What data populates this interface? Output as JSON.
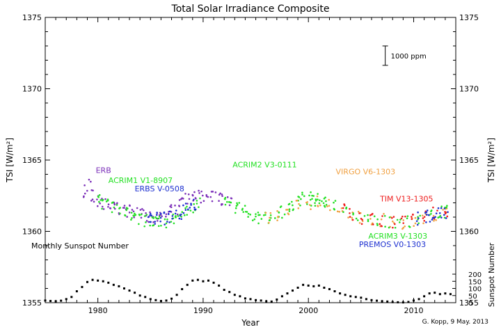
{
  "chart_data": {
    "type": "scatter",
    "title": "Total Solar Irradiance Composite",
    "xlabel": "Year",
    "ylabel_left": "TSI [W/m²]",
    "ylabel_right": "TSI [W/m²]",
    "ylabel_sunspot": "Sunspot Number",
    "xlim": [
      1975,
      2014
    ],
    "ylim": [
      1355,
      1375
    ],
    "x_ticks": [
      1980,
      1990,
      2000,
      2010
    ],
    "y_ticks": [
      1355,
      1360,
      1365,
      1370,
      1375
    ],
    "sunspot_axis": {
      "range": [
        0,
        200
      ],
      "ticks": [
        0,
        50,
        100,
        150,
        200
      ]
    },
    "scale_bar_label": "1000 ppm",
    "scale_bar_wm2": 1.361,
    "colors": {
      "erb": "#7a2db8",
      "acrim1": "#22e022",
      "erbs": "#1c2fd0",
      "acrim2": "#22e022",
      "virgo": "#f0a040",
      "tim": "#ee1c1c",
      "acrim3": "#22e022",
      "premos": "#1c2fd0",
      "sunspot": "#000000"
    },
    "series": [
      {
        "name": "ERB",
        "key": "erb",
        "x": [
          1978.9,
          1979.2,
          1979.6,
          1980.0,
          1980.5,
          1981.0,
          1981.5,
          1982.0,
          1982.5,
          1983.0,
          1983.5,
          1984.0,
          1984.5,
          1985.0,
          1985.5,
          1986.0,
          1986.5,
          1987.0,
          1987.5,
          1988.0,
          1988.5,
          1989.0,
          1989.5,
          1990.0,
          1990.5,
          1991.0,
          1991.5,
          1992.0,
          1992.5
        ],
        "y": [
          1362.8,
          1363.2,
          1362.5,
          1362.2,
          1362.0,
          1362.0,
          1361.8,
          1361.6,
          1361.5,
          1361.4,
          1361.3,
          1361.2,
          1361.1,
          1361.0,
          1360.9,
          1361.0,
          1361.2,
          1361.4,
          1361.6,
          1361.9,
          1362.2,
          1362.4,
          1362.6,
          1362.4,
          1362.3,
          1362.5,
          1362.3,
          1362.2,
          1362.0
        ],
        "label_year": 1979.8,
        "label_tsi": 1364.1
      },
      {
        "name": "ACRIM1 V1-8907",
        "key": "acrim1",
        "x": [
          1980.0,
          1980.5,
          1981.0,
          1981.5,
          1982.0,
          1982.5,
          1983.0,
          1983.5,
          1984.0,
          1984.5,
          1985.0,
          1985.5,
          1986.0,
          1986.5,
          1987.0,
          1987.5,
          1988.0,
          1988.5,
          1989.0,
          1989.5
        ],
        "y": [
          1362.1,
          1362.0,
          1361.8,
          1361.6,
          1361.5,
          1361.4,
          1361.2,
          1361.0,
          1360.9,
          1360.8,
          1360.7,
          1360.6,
          1360.6,
          1360.7,
          1360.8,
          1361.0,
          1361.2,
          1361.5,
          1361.7,
          1361.9
        ],
        "label_year": 1981.0,
        "label_tsi": 1363.4
      },
      {
        "name": "ERBS V-0508",
        "key": "erbs",
        "x": [
          1984.8,
          1985.2,
          1985.8,
          1986.2,
          1986.8,
          1987.2,
          1987.8,
          1988.2,
          1988.8,
          1989.2
        ],
        "y": [
          1361.0,
          1360.9,
          1360.9,
          1360.9,
          1361.0,
          1361.1,
          1361.3,
          1361.5,
          1361.7,
          1361.9
        ],
        "label_year": 1983.5,
        "label_tsi": 1362.8
      },
      {
        "name": "ACRIM2 V3-0111",
        "key": "acrim2",
        "x": [
          1992.0,
          1992.5,
          1993.0,
          1993.5,
          1994.0,
          1994.5,
          1995.0,
          1995.5,
          1996.0,
          1996.5,
          1997.0,
          1997.5,
          1998.0,
          1998.5,
          1999.0,
          1999.5,
          2000.0,
          2000.5,
          2001.0,
          2001.5
        ],
        "y": [
          1362.0,
          1361.8,
          1361.7,
          1361.6,
          1361.4,
          1361.2,
          1361.1,
          1361.0,
          1361.0,
          1361.0,
          1361.2,
          1361.4,
          1361.7,
          1361.9,
          1362.1,
          1362.3,
          1362.3,
          1362.1,
          1362.2,
          1362.0
        ],
        "label_year": 1992.8,
        "label_tsi": 1364.5
      },
      {
        "name": "VIRGO V6-1303",
        "key": "virgo",
        "x": [
          1996.2,
          1997.0,
          1998.0,
          1999.0,
          2000.0,
          2001.0,
          2002.0,
          2003.0,
          2004.0,
          2005.0,
          2006.0,
          2007.0,
          2008.0,
          2009.0,
          2010.0,
          2011.0,
          2012.0,
          2013.0
        ],
        "y": [
          1360.9,
          1361.0,
          1361.4,
          1361.8,
          1362.0,
          1362.1,
          1361.9,
          1361.6,
          1361.2,
          1361.0,
          1360.9,
          1360.8,
          1360.7,
          1360.6,
          1360.8,
          1361.0,
          1361.1,
          1361.2
        ],
        "label_year": 2002.6,
        "label_tsi": 1364.0
      },
      {
        "name": "TIM V13-1305",
        "key": "tim",
        "x": [
          2003.2,
          2004.0,
          2005.0,
          2006.0,
          2007.0,
          2008.0,
          2009.0,
          2010.0,
          2011.0,
          2012.0,
          2013.0
        ],
        "y": [
          1361.5,
          1361.2,
          1360.9,
          1360.8,
          1360.7,
          1360.6,
          1360.6,
          1360.8,
          1361.0,
          1361.3,
          1361.4
        ],
        "label_year": 2006.8,
        "label_tsi": 1362.1
      },
      {
        "name": "ACRIM3 V-1303",
        "key": "acrim3",
        "x": [
          2000.5,
          2001.5,
          2002.5,
          2003.5,
          2004.5,
          2005.5,
          2006.5,
          2007.5,
          2008.5,
          2009.5,
          2010.5,
          2011.5,
          2012.5,
          2013.0
        ],
        "y": [
          1362.2,
          1362.0,
          1361.8,
          1361.4,
          1361.1,
          1360.9,
          1360.8,
          1360.7,
          1360.6,
          1360.7,
          1360.9,
          1361.1,
          1361.3,
          1361.4
        ],
        "label_year": 2005.7,
        "label_tsi": 1359.5
      },
      {
        "name": "PREMOS V0-1303",
        "key": "premos",
        "x": [
          2010.5,
          2011.0,
          2011.5,
          2012.0,
          2012.5,
          2013.0
        ],
        "y": [
          1360.9,
          1361.0,
          1361.1,
          1361.2,
          1361.3,
          1361.3
        ],
        "label_year": 2004.8,
        "label_tsi": 1358.9
      }
    ],
    "sunspot": {
      "name": "Monthly Sunspot Number",
      "label_year": 1978.3,
      "label_tsi": 1358.8,
      "x": [
        1975.0,
        1975.5,
        1976.0,
        1976.5,
        1977.0,
        1977.5,
        1978.0,
        1978.5,
        1979.0,
        1979.5,
        1980.0,
        1980.5,
        1981.0,
        1981.5,
        1982.0,
        1982.5,
        1983.0,
        1983.5,
        1984.0,
        1984.5,
        1985.0,
        1985.5,
        1986.0,
        1986.5,
        1987.0,
        1987.5,
        1988.0,
        1988.5,
        1989.0,
        1989.5,
        1990.0,
        1990.5,
        1991.0,
        1991.5,
        1992.0,
        1992.5,
        1993.0,
        1993.5,
        1994.0,
        1994.5,
        1995.0,
        1995.5,
        1996.0,
        1996.5,
        1997.0,
        1997.5,
        1998.0,
        1998.5,
        1999.0,
        1999.5,
        2000.0,
        2000.5,
        2001.0,
        2001.5,
        2002.0,
        2002.5,
        2003.0,
        2003.5,
        2004.0,
        2004.5,
        2005.0,
        2005.5,
        2006.0,
        2006.5,
        2007.0,
        2007.5,
        2008.0,
        2008.5,
        2009.0,
        2009.5,
        2010.0,
        2010.5,
        2011.0,
        2011.5,
        2012.0,
        2012.5,
        2013.0,
        2013.5
      ],
      "y": [
        15,
        12,
        10,
        14,
        25,
        40,
        80,
        110,
        145,
        160,
        155,
        150,
        140,
        125,
        115,
        100,
        85,
        70,
        50,
        40,
        25,
        18,
        12,
        15,
        28,
        55,
        95,
        125,
        155,
        160,
        150,
        155,
        140,
        120,
        90,
        75,
        55,
        45,
        30,
        25,
        18,
        15,
        10,
        8,
        22,
        45,
        65,
        85,
        105,
        125,
        120,
        115,
        120,
        105,
        95,
        80,
        65,
        55,
        45,
        40,
        35,
        25,
        18,
        14,
        10,
        8,
        4,
        3,
        2,
        5,
        15,
        25,
        45,
        65,
        70,
        60,
        65,
        60
      ]
    },
    "credit": "G. Kopp,  9 May. 2013"
  }
}
